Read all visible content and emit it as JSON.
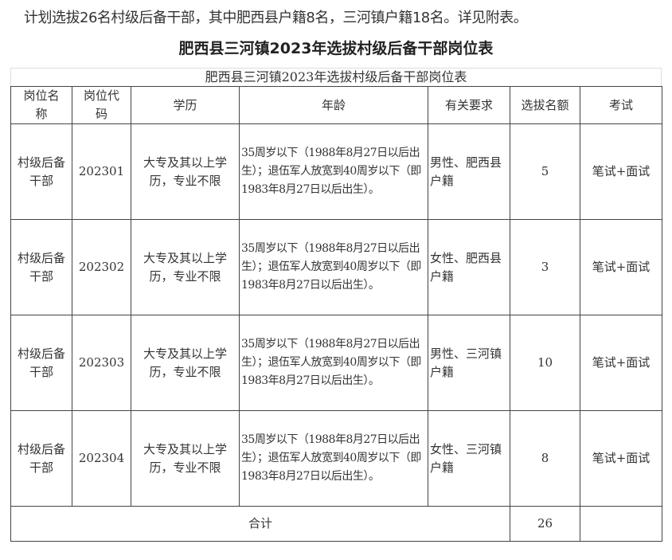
{
  "intro": "计划选拔26名村级后备干部，其中肥西县户籍8名，三河镇户籍18名。详见附表。",
  "title": "肥西县三河镇2023年选拔村级后备干部岗位表",
  "table": {
    "caption": "肥西县三河镇2023年选拔村级后备干部岗位表",
    "headers": [
      "岗位名称",
      "岗位代码",
      "学历",
      "年龄",
      "有关要求",
      "选拔名额",
      "考试"
    ],
    "rows": [
      {
        "name": "村级后备干部",
        "code": "202301",
        "edu": "大专及其以上学历，专业不限",
        "age": "35周岁以下（1988年8月27日以后出生）；退伍军人放宽到40周岁以下（即1983年8月27日以后出生）。",
        "req": "男性、肥西县户籍",
        "quota": "5",
        "exam": "笔试+面试"
      },
      {
        "name": "村级后备干部",
        "code": "202302",
        "edu": "大专及其以上学历，专业不限",
        "age": "35周岁以下（1988年8月27日以后出生）；退伍军人放宽到40周岁以下（即1983年8月27日以后出生）。",
        "req": "女性、肥西县户籍",
        "quota": "3",
        "exam": "笔试+面试"
      },
      {
        "name": "村级后备干部",
        "code": "202303",
        "edu": "大专及其以上学历，专业不限",
        "age": "35周岁以下（1988年8月27日以后出生）；退伍军人放宽到40周岁以下（即1983年8月27日以后出生）。",
        "req": "男性、三河镇户籍",
        "quota": "10",
        "exam": "笔试+面试"
      },
      {
        "name": "村级后备干部",
        "code": "202304",
        "edu": "大专及其以上学历，专业不限",
        "age": "35周岁以下（1988年8月27日以后出生）；退伍军人放宽到40周岁以下（即1983年8月27日以后出生）。",
        "req": "女性、三河镇户籍",
        "quota": "8",
        "exam": "笔试+面试"
      }
    ],
    "total_label": "合计",
    "total_value": "26"
  }
}
